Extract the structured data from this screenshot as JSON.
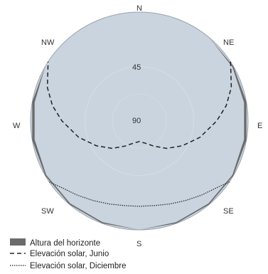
{
  "chart_data": {
    "type": "polar-sunpath",
    "directions": {
      "n": "N",
      "ne": "NE",
      "e": "E",
      "se": "SE",
      "s": "S",
      "sw": "SW",
      "w": "W",
      "nw": "NW"
    },
    "rings": [
      "45",
      "90"
    ],
    "colors": {
      "sky": "#c9d4df",
      "horizon": "#6b6b6b",
      "curve": "#222222",
      "rim": "#9aa3ad"
    },
    "horizon_profile": {
      "azimuth": [
        -140,
        -120,
        -100,
        -80,
        -60,
        -40,
        -20,
        0,
        20,
        40,
        60,
        80,
        100,
        120,
        140,
        160,
        180
      ],
      "elevation": [
        0,
        1,
        2,
        2,
        1,
        1,
        1,
        0,
        1,
        1,
        1,
        2,
        2,
        0,
        0,
        0,
        0
      ]
    },
    "series": [
      {
        "name": "Elevación solar, Junio",
        "style": "dashed",
        "azimuth": [
          -123,
          -110,
          -100,
          -90,
          -75,
          -60,
          -45,
          -30,
          -15,
          0,
          15,
          30,
          45,
          60,
          75,
          90,
          100,
          110,
          123
        ],
        "elevation": [
          0,
          9,
          17,
          26,
          38,
          49,
          58,
          66,
          71,
          73,
          71,
          66,
          58,
          49,
          38,
          26,
          17,
          9,
          0
        ]
      },
      {
        "name": "Elevación solar, Diciembre",
        "style": "dotted",
        "azimuth": [
          -56,
          -50,
          -40,
          -30,
          -20,
          -10,
          0,
          10,
          20,
          30,
          40,
          50,
          56
        ],
        "elevation": [
          0,
          5,
          10,
          14,
          17,
          19,
          19.5,
          19,
          17,
          14,
          10,
          5,
          0
        ]
      }
    ],
    "legend": [
      {
        "key": "horizon",
        "label": "Altura del horizonte"
      },
      {
        "key": "june",
        "label": "Elevación solar, Junio"
      },
      {
        "key": "december",
        "label": "Elevación solar, Diciembre"
      }
    ],
    "legend_position": "bottom-left"
  }
}
